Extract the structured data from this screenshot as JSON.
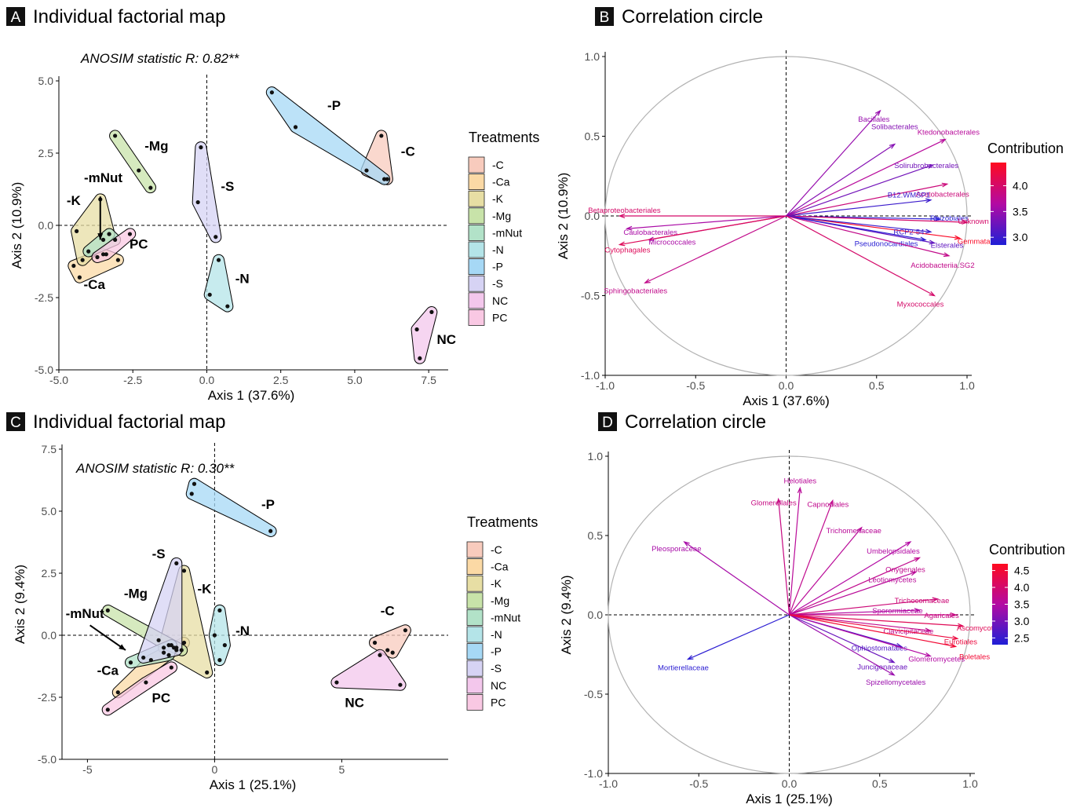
{
  "panels": [
    {
      "letter": "A",
      "title": "Individual factorial map"
    },
    {
      "letter": "B",
      "title": "Correlation circle"
    },
    {
      "letter": "C",
      "title": "Individual factorial map"
    },
    {
      "letter": "D",
      "title": "Correlation circle"
    }
  ],
  "legend_treatments": {
    "title": "Treatments",
    "items": [
      "-C",
      "-Ca",
      "-K",
      "-Mg",
      "-mNut",
      "-N",
      "-P",
      "-S",
      "NC",
      "PC"
    ],
    "colors": [
      "#f8cbbd",
      "#fbd9a5",
      "#e7dea4",
      "#c8e3a9",
      "#b2e2c8",
      "#b4e4e8",
      "#a6d8f5",
      "#d6d3f4",
      "#f3c7ec",
      "#f9c8e3"
    ]
  },
  "legend_contribution": {
    "title": "Contribution",
    "low_color": "#1f1fd6",
    "mid_color": "#b30aa3",
    "high_color": "#ff0a1f"
  },
  "chart_data": [
    {
      "type": "scatter",
      "title": "Individual factorial map",
      "annotation": "ANOSIM statistic R: 0.82**",
      "xlabel": "Axis 1 (37.6%)",
      "ylabel": "Axis 2 (10.9%)",
      "xlim": [
        -5.0,
        8.0
      ],
      "ylim": [
        -5.0,
        5.0
      ],
      "xticks": [
        "-5.0",
        "-2.5",
        "0.0",
        "2.5",
        "5.0",
        "7.5"
      ],
      "yticks": [
        "-5.0",
        "-2.5",
        "0.0",
        "2.5",
        "5.0"
      ],
      "groups": [
        {
          "name": "-C",
          "label": "-C",
          "points": [
            [
              5.9,
              3.1
            ],
            [
              5.4,
              1.9
            ],
            [
              6.1,
              1.6
            ]
          ]
        },
        {
          "name": "-Ca",
          "label": "-Ca",
          "points": [
            [
              -4.5,
              -1.4
            ],
            [
              -4.3,
              -1.8
            ],
            [
              -3.5,
              -1.0
            ],
            [
              -3.0,
              -1.2
            ]
          ]
        },
        {
          "name": "-K",
          "label": "-K",
          "points": [
            [
              -4.4,
              -0.2
            ],
            [
              -4.2,
              -1.2
            ],
            [
              -3.6,
              0.9
            ],
            [
              -3.3,
              -0.3
            ]
          ]
        },
        {
          "name": "-Mg",
          "label": "-Mg",
          "points": [
            [
              -3.1,
              3.1
            ],
            [
              -2.3,
              1.9
            ],
            [
              -1.9,
              1.3
            ]
          ]
        },
        {
          "name": "-mNut",
          "label": "-mNut",
          "points": [
            [
              -4.0,
              -0.9
            ],
            [
              -3.5,
              -0.5
            ],
            [
              -3.3,
              -0.3
            ],
            [
              -3.1,
              -0.5
            ]
          ]
        },
        {
          "name": "-N",
          "label": "-N",
          "points": [
            [
              0.4,
              -1.2
            ],
            [
              0.1,
              -2.4
            ],
            [
              0.7,
              -2.8
            ]
          ]
        },
        {
          "name": "-P",
          "label": "-P",
          "points": [
            [
              2.2,
              4.6
            ],
            [
              3.0,
              3.4
            ],
            [
              6.0,
              1.6
            ]
          ]
        },
        {
          "name": "-S",
          "label": "-S",
          "points": [
            [
              -0.2,
              2.7
            ],
            [
              -0.3,
              0.8
            ],
            [
              0.3,
              -0.4
            ]
          ]
        },
        {
          "name": "NC",
          "label": "NC",
          "points": [
            [
              7.1,
              -3.6
            ],
            [
              7.2,
              -4.6
            ],
            [
              7.6,
              -3.0
            ]
          ]
        },
        {
          "name": "PC",
          "label": "PC",
          "points": [
            [
              -3.7,
              -1.1
            ],
            [
              -3.4,
              -1.0
            ],
            [
              -2.6,
              -0.3
            ]
          ]
        }
      ],
      "arrow_label": "-mNut"
    },
    {
      "type": "vector",
      "title": "Correlation circle",
      "xlabel": "Axis 1 (37.6%)",
      "ylabel": "Axis 2 (10.9%)",
      "xlim": [
        -1.0,
        1.0
      ],
      "ylim": [
        -1.0,
        1.0
      ],
      "xticks": [
        "-1.0",
        "-0.5",
        "0.0",
        "0.5",
        "1.0"
      ],
      "yticks": [
        "-1.0",
        "-0.5",
        "0.0",
        "0.5",
        "1.0"
      ],
      "contribution_ticks": [
        "3.0",
        "3.5",
        "4.0"
      ],
      "contribution_range": [
        2.85,
        4.45
      ],
      "vectors": [
        {
          "name": "Bacillales",
          "x": 0.52,
          "y": 0.66,
          "c": 3.5
        },
        {
          "name": "Solibacterales",
          "x": 0.6,
          "y": 0.45,
          "c": 3.4
        },
        {
          "name": "Ktedonobacterales",
          "x": 0.88,
          "y": 0.48,
          "c": 3.7
        },
        {
          "name": "Solirubrobacterales",
          "x": 0.81,
          "y": 0.32,
          "c": 3.3
        },
        {
          "name": "Acetobacterales",
          "x": 0.89,
          "y": 0.2,
          "c": 3.9
        },
        {
          "name": "B12.WMSP1",
          "x": 0.8,
          "y": 0.1,
          "c": 3.0
        },
        {
          "name": "Rhizobiales",
          "x": 0.85,
          "y": -0.02,
          "c": 2.9
        },
        {
          "name": "Unknown",
          "x": 1.0,
          "y": -0.04,
          "c": 4.0
        },
        {
          "name": "Gemmatales",
          "x": 0.96,
          "y": -0.14,
          "c": 4.4
        },
        {
          "name": "RCP2-54",
          "x": 0.8,
          "y": -0.1,
          "c": 3.0
        },
        {
          "name": "Elsterales",
          "x": 0.82,
          "y": -0.17,
          "c": 3.2
        },
        {
          "name": "Pseudonocardiales",
          "x": 0.77,
          "y": -0.15,
          "c": 2.9
        },
        {
          "name": "Acidobacteriia.SG2",
          "x": 0.9,
          "y": -0.25,
          "c": 3.8
        },
        {
          "name": "Myxococcales",
          "x": 0.82,
          "y": -0.5,
          "c": 4.0
        },
        {
          "name": "Betaproteobacteriales",
          "x": -0.92,
          "y": 0.0,
          "c": 4.0
        },
        {
          "name": "Caulobacterales",
          "x": -0.88,
          "y": -0.08,
          "c": 3.6
        },
        {
          "name": "Micrococcales",
          "x": -0.76,
          "y": -0.15,
          "c": 3.6
        },
        {
          "name": "Cytophagales",
          "x": -0.92,
          "y": -0.18,
          "c": 4.1
        },
        {
          "name": "Sphingobacteriales",
          "x": -0.78,
          "y": -0.42,
          "c": 3.8
        }
      ]
    },
    {
      "type": "scatter",
      "title": "Individual factorial map",
      "annotation": "ANOSIM statistic R: 0.30**",
      "xlabel": "Axis 1 (25.1%)",
      "ylabel": "Axis 2 (9.4%)",
      "xlim": [
        -6.0,
        9.0
      ],
      "ylim": [
        -5.0,
        7.5
      ],
      "xticks": [
        "-5",
        "0",
        "5"
      ],
      "yticks": [
        "-5.0",
        "-2.5",
        "0.0",
        "2.5",
        "5.0",
        "7.5"
      ],
      "groups": [
        {
          "name": "-C",
          "label": "-C",
          "points": [
            [
              7.5,
              0.2
            ],
            [
              6.8,
              -0.6
            ],
            [
              7.0,
              -0.7
            ],
            [
              6.3,
              -0.3
            ]
          ]
        },
        {
          "name": "-Ca",
          "label": "-Ca",
          "points": [
            [
              -3.8,
              -2.3
            ],
            [
              -2.5,
              -1.0
            ],
            [
              -1.2,
              -0.3
            ],
            [
              -1.5,
              -0.5
            ]
          ]
        },
        {
          "name": "-K",
          "label": "-K",
          "points": [
            [
              -1.2,
              2.6
            ],
            [
              -0.3,
              -1.5
            ],
            [
              -2.0,
              -0.5
            ],
            [
              -1.6,
              -0.5
            ]
          ]
        },
        {
          "name": "-Mg",
          "label": "-Mg",
          "points": [
            [
              -4.2,
              1.0
            ],
            [
              -2.2,
              -0.2
            ],
            [
              -1.8,
              -0.4
            ],
            [
              -1.3,
              -0.6
            ]
          ]
        },
        {
          "name": "-mNut",
          "label": "-mNut",
          "points": [
            [
              -3.3,
              -1.1
            ],
            [
              -2.0,
              -0.7
            ],
            [
              -1.7,
              -0.4
            ],
            [
              -1.8,
              -0.8
            ]
          ]
        },
        {
          "name": "-N",
          "label": "-N",
          "points": [
            [
              0.2,
              1.0
            ],
            [
              0.4,
              -0.4
            ],
            [
              0.2,
              -1.0
            ],
            [
              0.0,
              0.0
            ]
          ]
        },
        {
          "name": "-P",
          "label": "-P",
          "points": [
            [
              -0.8,
              6.1
            ],
            [
              -0.9,
              5.7
            ],
            [
              2.2,
              4.2
            ]
          ]
        },
        {
          "name": "-S",
          "label": "-S",
          "points": [
            [
              -1.5,
              2.9
            ],
            [
              -2.8,
              -0.9
            ],
            [
              -1.5,
              -0.6
            ]
          ]
        },
        {
          "name": "NC",
          "label": "NC",
          "points": [
            [
              4.8,
              -1.9
            ],
            [
              7.3,
              -2.0
            ],
            [
              6.5,
              -0.8
            ]
          ]
        },
        {
          "name": "PC",
          "label": "PC",
          "points": [
            [
              -4.2,
              -3.0
            ],
            [
              -2.7,
              -1.9
            ],
            [
              -1.7,
              -1.3
            ]
          ]
        }
      ],
      "arrow_label": "-mNut"
    },
    {
      "type": "vector",
      "title": "Correlation circle",
      "xlabel": "Axis 1 (25.1%)",
      "ylabel": "Axis 2 (9.4%)",
      "xlim": [
        -1.0,
        1.0
      ],
      "ylim": [
        -1.0,
        1.0
      ],
      "xticks": [
        "-1.0",
        "-0.5",
        "0.0",
        "0.5",
        "1.0"
      ],
      "yticks": [
        "-1.0",
        "-0.5",
        "0.0",
        "0.5",
        "1.0"
      ],
      "contribution_ticks": [
        "2.5",
        "3.0",
        "3.5",
        "4.0",
        "4.5"
      ],
      "contribution_range": [
        2.3,
        4.7
      ],
      "vectors": [
        {
          "name": "Helotiales",
          "x": 0.06,
          "y": 0.8,
          "c": 3.6
        },
        {
          "name": "Glomerellales",
          "x": -0.06,
          "y": 0.73,
          "c": 3.8
        },
        {
          "name": "Capnodiales",
          "x": 0.24,
          "y": 0.72,
          "c": 3.7
        },
        {
          "name": "Trichomeriaceae",
          "x": 0.4,
          "y": 0.55,
          "c": 3.6
        },
        {
          "name": "Umbelopsidales",
          "x": 0.67,
          "y": 0.46,
          "c": 3.5
        },
        {
          "name": "Onygenales",
          "x": 0.72,
          "y": 0.36,
          "c": 3.7
        },
        {
          "name": "Leotiomycetes",
          "x": 0.7,
          "y": 0.27,
          "c": 3.6
        },
        {
          "name": "Pleosporaceae",
          "x": -0.58,
          "y": 0.46,
          "c": 3.4
        },
        {
          "name": "Trichocomaceae",
          "x": 0.82,
          "y": 0.1,
          "c": 3.9
        },
        {
          "name": "Sporormiaceae",
          "x": 0.72,
          "y": 0.03,
          "c": 3.5
        },
        {
          "name": "Agaricales",
          "x": 0.92,
          "y": 0.0,
          "c": 3.8
        },
        {
          "name": "Clavicipitaceae",
          "x": 0.78,
          "y": -0.1,
          "c": 3.7
        },
        {
          "name": "Ascomycota",
          "x": 0.96,
          "y": -0.07,
          "c": 4.2
        },
        {
          "name": "Eurotiales",
          "x": 0.93,
          "y": -0.15,
          "c": 4.4
        },
        {
          "name": "Ophiostomatales",
          "x": 0.62,
          "y": -0.2,
          "c": 2.7
        },
        {
          "name": "Glomeromycetes",
          "x": 0.78,
          "y": -0.26,
          "c": 3.5
        },
        {
          "name": "Juncigenaceae",
          "x": 0.58,
          "y": -0.3,
          "c": 2.9
        },
        {
          "name": "Spizellomycetales",
          "x": 0.58,
          "y": -0.38,
          "c": 3.3
        },
        {
          "name": "Boletales",
          "x": 0.92,
          "y": -0.2,
          "c": 4.5
        },
        {
          "name": "Mortierellaceae",
          "x": -0.56,
          "y": -0.28,
          "c": 2.4
        }
      ]
    }
  ]
}
